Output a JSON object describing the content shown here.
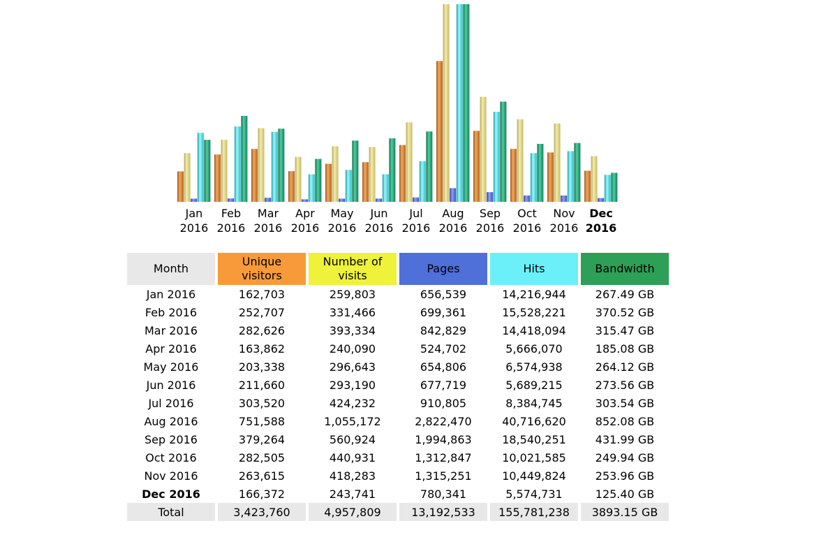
{
  "chart_data": {
    "type": "bar",
    "categories": [
      "Jan",
      "Feb",
      "Mar",
      "Apr",
      "May",
      "Jun",
      "Jul",
      "Aug",
      "Sep",
      "Oct",
      "Nov",
      "Dec"
    ],
    "category_years": [
      "2016",
      "2016",
      "2016",
      "2016",
      "2016",
      "2016",
      "2016",
      "2016",
      "2016",
      "2016",
      "2016",
      "2016"
    ],
    "current_index": 11,
    "series": [
      {
        "name": "Unique visitors",
        "color": "#f89a3a",
        "values": [
          162703,
          252707,
          282626,
          163862,
          203338,
          211660,
          303520,
          751588,
          379264,
          282505,
          263615,
          166372
        ]
      },
      {
        "name": "Number of visits",
        "color": "#eef23a",
        "values": [
          259803,
          331466,
          393334,
          240090,
          296643,
          293190,
          424232,
          1055172,
          560924,
          440931,
          418283,
          243741
        ]
      },
      {
        "name": "Pages",
        "color": "#4f6fd9",
        "values": [
          656539,
          699361,
          842829,
          524702,
          654806,
          677719,
          910805,
          2822470,
          1994863,
          1312847,
          1315251,
          780341
        ]
      },
      {
        "name": "Hits",
        "color": "#6bf0f9",
        "values": [
          14216944,
          15528221,
          14418094,
          5666070,
          6574938,
          5689215,
          8384745,
          40716620,
          18540251,
          10021585,
          10449824,
          5574731
        ]
      },
      {
        "name": "Bandwidth",
        "color": "#2e9f56",
        "unit": "GB",
        "values": [
          267.49,
          370.52,
          315.47,
          185.08,
          264.12,
          273.56,
          303.54,
          852.08,
          431.99,
          249.94,
          253.96,
          125.4
        ]
      }
    ]
  },
  "table": {
    "headers": {
      "month": "Month",
      "unique_visitors_line1": "Unique",
      "unique_visitors_line2": "visitors",
      "visits_line1": "Number of",
      "visits_line2": "visits",
      "pages": "Pages",
      "hits": "Hits",
      "bandwidth": "Bandwidth"
    },
    "rows": [
      {
        "month": "Jan 2016",
        "uv": "162,703",
        "visits": "259,803",
        "pages": "656,539",
        "hits": "14,216,944",
        "bw": "267.49 GB"
      },
      {
        "month": "Feb 2016",
        "uv": "252,707",
        "visits": "331,466",
        "pages": "699,361",
        "hits": "15,528,221",
        "bw": "370.52 GB"
      },
      {
        "month": "Mar 2016",
        "uv": "282,626",
        "visits": "393,334",
        "pages": "842,829",
        "hits": "14,418,094",
        "bw": "315.47 GB"
      },
      {
        "month": "Apr 2016",
        "uv": "163,862",
        "visits": "240,090",
        "pages": "524,702",
        "hits": "5,666,070",
        "bw": "185.08 GB"
      },
      {
        "month": "May 2016",
        "uv": "203,338",
        "visits": "296,643",
        "pages": "654,806",
        "hits": "6,574,938",
        "bw": "264.12 GB"
      },
      {
        "month": "Jun 2016",
        "uv": "211,660",
        "visits": "293,190",
        "pages": "677,719",
        "hits": "5,689,215",
        "bw": "273.56 GB"
      },
      {
        "month": "Jul 2016",
        "uv": "303,520",
        "visits": "424,232",
        "pages": "910,805",
        "hits": "8,384,745",
        "bw": "303.54 GB"
      },
      {
        "month": "Aug 2016",
        "uv": "751,588",
        "visits": "1,055,172",
        "pages": "2,822,470",
        "hits": "40,716,620",
        "bw": "852.08 GB"
      },
      {
        "month": "Sep 2016",
        "uv": "379,264",
        "visits": "560,924",
        "pages": "1,994,863",
        "hits": "18,540,251",
        "bw": "431.99 GB"
      },
      {
        "month": "Oct 2016",
        "uv": "282,505",
        "visits": "440,931",
        "pages": "1,312,847",
        "hits": "10,021,585",
        "bw": "249.94 GB"
      },
      {
        "month": "Nov 2016",
        "uv": "263,615",
        "visits": "418,283",
        "pages": "1,315,251",
        "hits": "10,449,824",
        "bw": "253.96 GB"
      },
      {
        "month": "Dec 2016",
        "uv": "166,372",
        "visits": "243,741",
        "pages": "780,341",
        "hits": "5,574,731",
        "bw": "125.40 GB",
        "current": true
      }
    ],
    "total": {
      "month": "Total",
      "uv": "3,423,760",
      "visits": "4,957,809",
      "pages": "13,192,533",
      "hits": "155,781,238",
      "bw": "3893.15 GB"
    }
  }
}
